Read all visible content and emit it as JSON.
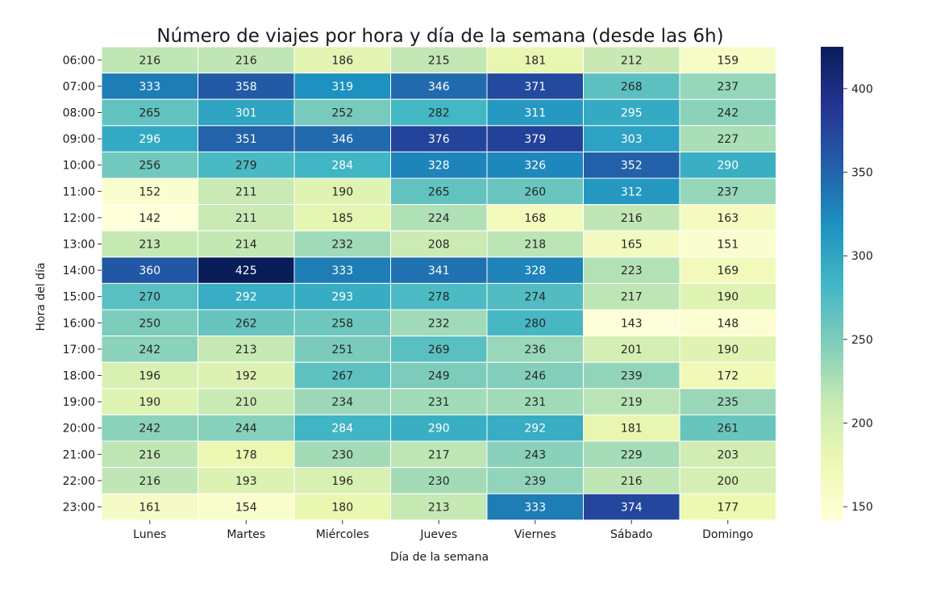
{
  "chart_data": {
    "type": "heatmap",
    "title": "Número de viajes por hora y día de la semana (desde las 6h)",
    "xlabel": "Día de la semana",
    "ylabel": "Hora del día",
    "x_categories": [
      "Lunes",
      "Martes",
      "Miércoles",
      "Jueves",
      "Viernes",
      "Sábado",
      "Domingo"
    ],
    "y_categories": [
      "06:00",
      "07:00",
      "08:00",
      "09:00",
      "10:00",
      "11:00",
      "12:00",
      "13:00",
      "14:00",
      "15:00",
      "16:00",
      "17:00",
      "18:00",
      "19:00",
      "20:00",
      "21:00",
      "22:00",
      "23:00"
    ],
    "values": [
      [
        216,
        216,
        186,
        215,
        181,
        212,
        159
      ],
      [
        333,
        358,
        319,
        346,
        371,
        268,
        237
      ],
      [
        265,
        301,
        252,
        282,
        311,
        295,
        242
      ],
      [
        296,
        351,
        346,
        376,
        379,
        303,
        227
      ],
      [
        256,
        279,
        284,
        328,
        326,
        352,
        290
      ],
      [
        152,
        211,
        190,
        265,
        260,
        312,
        237
      ],
      [
        142,
        211,
        185,
        224,
        168,
        216,
        163
      ],
      [
        213,
        214,
        232,
        208,
        218,
        165,
        151
      ],
      [
        360,
        425,
        333,
        341,
        328,
        223,
        169
      ],
      [
        270,
        292,
        293,
        278,
        274,
        217,
        190
      ],
      [
        250,
        262,
        258,
        232,
        280,
        143,
        148
      ],
      [
        242,
        213,
        251,
        269,
        236,
        201,
        190
      ],
      [
        196,
        192,
        267,
        249,
        246,
        239,
        172
      ],
      [
        190,
        210,
        234,
        231,
        231,
        219,
        235
      ],
      [
        242,
        244,
        284,
        290,
        292,
        181,
        261
      ],
      [
        216,
        178,
        230,
        217,
        243,
        229,
        203
      ],
      [
        216,
        193,
        196,
        230,
        239,
        216,
        200
      ],
      [
        161,
        154,
        180,
        213,
        333,
        374,
        177
      ]
    ],
    "colorscale": "YlGnBu",
    "vmin": 142,
    "vmax": 425,
    "colorbar_ticks": [
      150,
      200,
      250,
      300,
      350,
      400
    ],
    "annotations": true
  }
}
